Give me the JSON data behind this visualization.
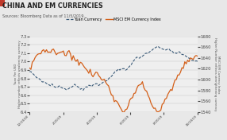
{
  "title": "CHINA AND EM CURRENCIES",
  "subtitle": "Sources: Bloomberg Data as of 11/5/2019.",
  "title_color": "#222222",
  "subtitle_color": "#555555",
  "background_color": "#e8e8e8",
  "plot_background": "#efefef",
  "legend_yuan": "Yuan Currency",
  "legend_msci": "MSCI EM Currency Index",
  "yuan_color": "#3a5a78",
  "msci_color": "#d4601a",
  "ylabel_left": "Yuan Per USD\nHigher number reflects weakening currency",
  "ylabel_right": "MSCI EM Currency Index\nHigher Number reflects strengthening currency",
  "ylim_left": [
    6.4,
    7.3
  ],
  "ylim_right": [
    1540,
    1680
  ],
  "yticks_left": [
    6.4,
    6.5,
    6.6,
    6.7,
    6.8,
    6.9,
    7.0,
    7.1,
    7.2,
    7.3
  ],
  "yticks_right": [
    1540,
    1560,
    1580,
    1600,
    1620,
    1640,
    1660,
    1680
  ],
  "xtick_labels": [
    "12/2018",
    "2/2019",
    "4/2019",
    "6/2019",
    "8/2019",
    "10/2019"
  ],
  "accent_color": "#c0392b"
}
